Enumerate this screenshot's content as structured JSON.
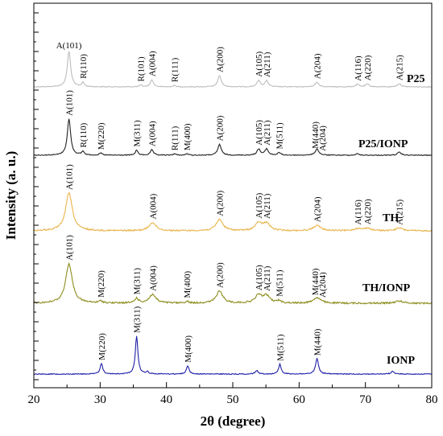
{
  "chart_data": {
    "type": "line",
    "xlabel": "2θ (degree)",
    "ylabel": "Intensity (a. u.)",
    "xlim": [
      20,
      80
    ],
    "x_ticks": [
      "20",
      "30",
      "40",
      "50",
      "60",
      "70",
      "80"
    ],
    "series": [
      {
        "name": "P25",
        "color": "#bdbdbd",
        "peaks": [
          {
            "x": 25.3,
            "height": 1.0,
            "width": 0.45
          },
          {
            "x": 27.4,
            "height": 0.12,
            "width": 0.35
          },
          {
            "x": 36.1,
            "height": 0.05,
            "width": 0.35
          },
          {
            "x": 37.8,
            "height": 0.2,
            "width": 0.4
          },
          {
            "x": 41.2,
            "height": 0.04,
            "width": 0.35
          },
          {
            "x": 48.0,
            "height": 0.32,
            "width": 0.45
          },
          {
            "x": 53.9,
            "height": 0.18,
            "width": 0.45
          },
          {
            "x": 55.1,
            "height": 0.17,
            "width": 0.45
          },
          {
            "x": 62.7,
            "height": 0.13,
            "width": 0.5
          },
          {
            "x": 68.8,
            "height": 0.07,
            "width": 0.45
          },
          {
            "x": 70.3,
            "height": 0.08,
            "width": 0.45
          },
          {
            "x": 75.1,
            "height": 0.09,
            "width": 0.5
          }
        ],
        "labels": [
          {
            "text": "A(101)",
            "x": 25.3,
            "rotated": false
          },
          {
            "text": "R(110)",
            "x": 27.4,
            "rotated": true
          },
          {
            "text": "R(101)",
            "x": 36.1,
            "rotated": true
          },
          {
            "text": "A(004)",
            "x": 37.8,
            "rotated": true
          },
          {
            "text": "R(111)",
            "x": 41.2,
            "rotated": true
          },
          {
            "text": "A(200)",
            "x": 48.0,
            "rotated": true
          },
          {
            "text": "A(105)",
            "x": 53.9,
            "rotated": true
          },
          {
            "text": "A(211)",
            "x": 55.1,
            "rotated": true
          },
          {
            "text": "A(204)",
            "x": 62.7,
            "rotated": true
          },
          {
            "text": "A(116)",
            "x": 68.8,
            "rotated": true
          },
          {
            "text": "A(220)",
            "x": 70.3,
            "rotated": true
          },
          {
            "text": "A(215)",
            "x": 75.1,
            "rotated": true
          }
        ]
      },
      {
        "name": "P25/IONP",
        "color": "#222222",
        "peaks": [
          {
            "x": 25.3,
            "height": 1.0,
            "width": 0.45
          },
          {
            "x": 27.4,
            "height": 0.1,
            "width": 0.35
          },
          {
            "x": 30.1,
            "height": 0.06,
            "width": 0.35
          },
          {
            "x": 35.5,
            "height": 0.14,
            "width": 0.35
          },
          {
            "x": 37.8,
            "height": 0.15,
            "width": 0.4
          },
          {
            "x": 41.2,
            "height": 0.04,
            "width": 0.35
          },
          {
            "x": 43.1,
            "height": 0.04,
            "width": 0.35
          },
          {
            "x": 48.0,
            "height": 0.3,
            "width": 0.45
          },
          {
            "x": 53.9,
            "height": 0.17,
            "width": 0.45
          },
          {
            "x": 55.1,
            "height": 0.17,
            "width": 0.45
          },
          {
            "x": 57.0,
            "height": 0.07,
            "width": 0.4
          },
          {
            "x": 62.7,
            "height": 0.17,
            "width": 0.5
          },
          {
            "x": 68.8,
            "height": 0.04,
            "width": 0.45
          },
          {
            "x": 75.1,
            "height": 0.08,
            "width": 0.5
          }
        ],
        "labels": [
          {
            "text": "A(101)",
            "x": 25.3,
            "rotated": true
          },
          {
            "text": "R(110)",
            "x": 27.4,
            "rotated": true
          },
          {
            "text": "M(220)",
            "x": 30.1,
            "rotated": true
          },
          {
            "text": "M(311)",
            "x": 35.5,
            "rotated": true
          },
          {
            "text": "A(004)",
            "x": 37.8,
            "rotated": true
          },
          {
            "text": "R(111)",
            "x": 41.2,
            "rotated": true
          },
          {
            "text": "M(400)",
            "x": 43.1,
            "rotated": true
          },
          {
            "text": "A(200)",
            "x": 48.0,
            "rotated": true
          },
          {
            "text": "A(105)",
            "x": 53.9,
            "rotated": true
          },
          {
            "text": "A(211)",
            "x": 55.1,
            "rotated": true
          },
          {
            "text": "M(511)",
            "x": 57.0,
            "rotated": true
          },
          {
            "text": "M(440)",
            "x": 62.4,
            "rotated": true
          },
          {
            "text": "A(204)",
            "x": 63.5,
            "rotated": true
          }
        ]
      },
      {
        "name": "TH",
        "color": "#e8b44a",
        "peaks": [
          {
            "x": 25.3,
            "height": 1.0,
            "width": 0.9
          },
          {
            "x": 37.9,
            "height": 0.22,
            "width": 0.9
          },
          {
            "x": 48.0,
            "height": 0.3,
            "width": 0.9
          },
          {
            "x": 53.9,
            "height": 0.2,
            "width": 0.9
          },
          {
            "x": 55.1,
            "height": 0.19,
            "width": 0.9
          },
          {
            "x": 62.7,
            "height": 0.14,
            "width": 1.0
          },
          {
            "x": 68.8,
            "height": 0.06,
            "width": 0.9
          },
          {
            "x": 70.3,
            "height": 0.07,
            "width": 0.9
          },
          {
            "x": 75.1,
            "height": 0.07,
            "width": 1.0
          }
        ],
        "labels": [
          {
            "text": "A(101)",
            "x": 25.3,
            "rotated": true
          },
          {
            "text": "A(004)",
            "x": 37.9,
            "rotated": true
          },
          {
            "text": "A(200)",
            "x": 48.0,
            "rotated": true
          },
          {
            "text": "A(105)",
            "x": 53.9,
            "rotated": true
          },
          {
            "text": "A(211)",
            "x": 55.1,
            "rotated": true
          },
          {
            "text": "A(204)",
            "x": 62.7,
            "rotated": true
          },
          {
            "text": "A(116)",
            "x": 68.8,
            "rotated": true
          },
          {
            "text": "A(220)",
            "x": 70.3,
            "rotated": true
          },
          {
            "text": "A(215)",
            "x": 75.1,
            "rotated": true
          }
        ]
      },
      {
        "name": "TH/IONP",
        "color": "#8c8c1c",
        "peaks": [
          {
            "x": 25.3,
            "height": 1.0,
            "width": 0.9
          },
          {
            "x": 30.1,
            "height": 0.05,
            "width": 0.5
          },
          {
            "x": 35.5,
            "height": 0.12,
            "width": 0.5
          },
          {
            "x": 37.9,
            "height": 0.22,
            "width": 0.9
          },
          {
            "x": 43.1,
            "height": 0.04,
            "width": 0.5
          },
          {
            "x": 48.0,
            "height": 0.3,
            "width": 0.9
          },
          {
            "x": 53.9,
            "height": 0.2,
            "width": 0.9
          },
          {
            "x": 55.1,
            "height": 0.18,
            "width": 0.9
          },
          {
            "x": 57.0,
            "height": 0.06,
            "width": 0.5
          },
          {
            "x": 62.7,
            "height": 0.14,
            "width": 1.0
          },
          {
            "x": 75.1,
            "height": 0.06,
            "width": 1.0
          }
        ],
        "labels": [
          {
            "text": "A(101)",
            "x": 25.3,
            "rotated": true
          },
          {
            "text": "M(220)",
            "x": 30.1,
            "rotated": true
          },
          {
            "text": "M(311)",
            "x": 35.5,
            "rotated": true
          },
          {
            "text": "A(004)",
            "x": 37.9,
            "rotated": true
          },
          {
            "text": "M(400)",
            "x": 43.1,
            "rotated": true
          },
          {
            "text": "A(200)",
            "x": 48.0,
            "rotated": true
          },
          {
            "text": "A(105)",
            "x": 53.9,
            "rotated": true
          },
          {
            "text": "A(211)",
            "x": 55.1,
            "rotated": true
          },
          {
            "text": "M(511)",
            "x": 57.0,
            "rotated": true
          },
          {
            "text": "M(440)",
            "x": 62.4,
            "rotated": true
          },
          {
            "text": "A(204)",
            "x": 63.5,
            "rotated": true
          }
        ]
      },
      {
        "name": "IONP",
        "color": "#1f1fa8",
        "peaks": [
          {
            "x": 30.2,
            "height": 0.28,
            "width": 0.35
          },
          {
            "x": 35.5,
            "height": 1.0,
            "width": 0.35
          },
          {
            "x": 37.1,
            "height": 0.06,
            "width": 0.35
          },
          {
            "x": 43.2,
            "height": 0.22,
            "width": 0.35
          },
          {
            "x": 53.6,
            "height": 0.1,
            "width": 0.35
          },
          {
            "x": 57.1,
            "height": 0.26,
            "width": 0.35
          },
          {
            "x": 62.7,
            "height": 0.4,
            "width": 0.4
          },
          {
            "x": 74.1,
            "height": 0.07,
            "width": 0.4
          }
        ],
        "labels": [
          {
            "text": "M(220)",
            "x": 30.2,
            "rotated": true
          },
          {
            "text": "M(311)",
            "x": 35.5,
            "rotated": true
          },
          {
            "text": "M(400)",
            "x": 43.2,
            "rotated": true
          },
          {
            "text": "M(511)",
            "x": 57.1,
            "rotated": true
          },
          {
            "text": "M(440)",
            "x": 62.7,
            "rotated": true
          }
        ]
      }
    ]
  }
}
